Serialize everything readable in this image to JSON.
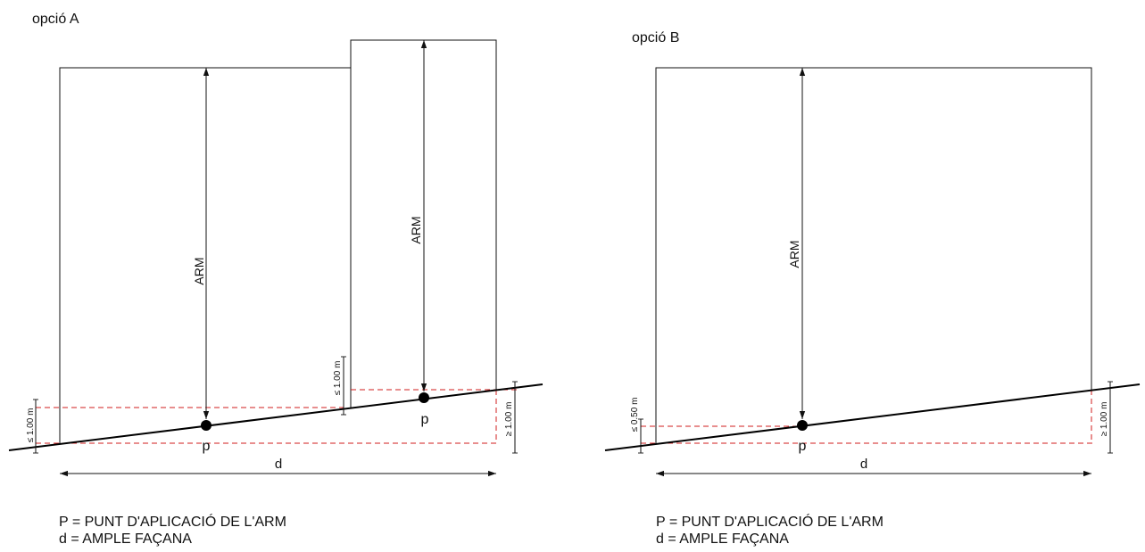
{
  "option_a": {
    "title": "opció A",
    "arm_label_1": "ARM",
    "arm_label_2": "ARM",
    "point_label_1": "p",
    "point_label_2": "p",
    "width_label": "d",
    "dim_left": "≤ 1.00 m",
    "dim_middle": "≤ 1.00 m",
    "dim_right": "≥ 1.00 m",
    "legend_p": "P = PUNT D'APLICACIÓ DE L'ARM",
    "legend_d": "d = AMPLE FAÇANA"
  },
  "option_b": {
    "title": "opció B",
    "arm_label": "ARM",
    "point_label": "p",
    "width_label": "d",
    "dim_left": "≤ 0.50 m",
    "dim_right": "≥ 1.00 m",
    "legend_p": "P = PUNT D'APLICACIÓ DE L'ARM",
    "legend_d": "d = AMPLE FAÇANA"
  },
  "colors": {
    "ink": "#111111",
    "dashed_guides": "#d21e1e"
  }
}
